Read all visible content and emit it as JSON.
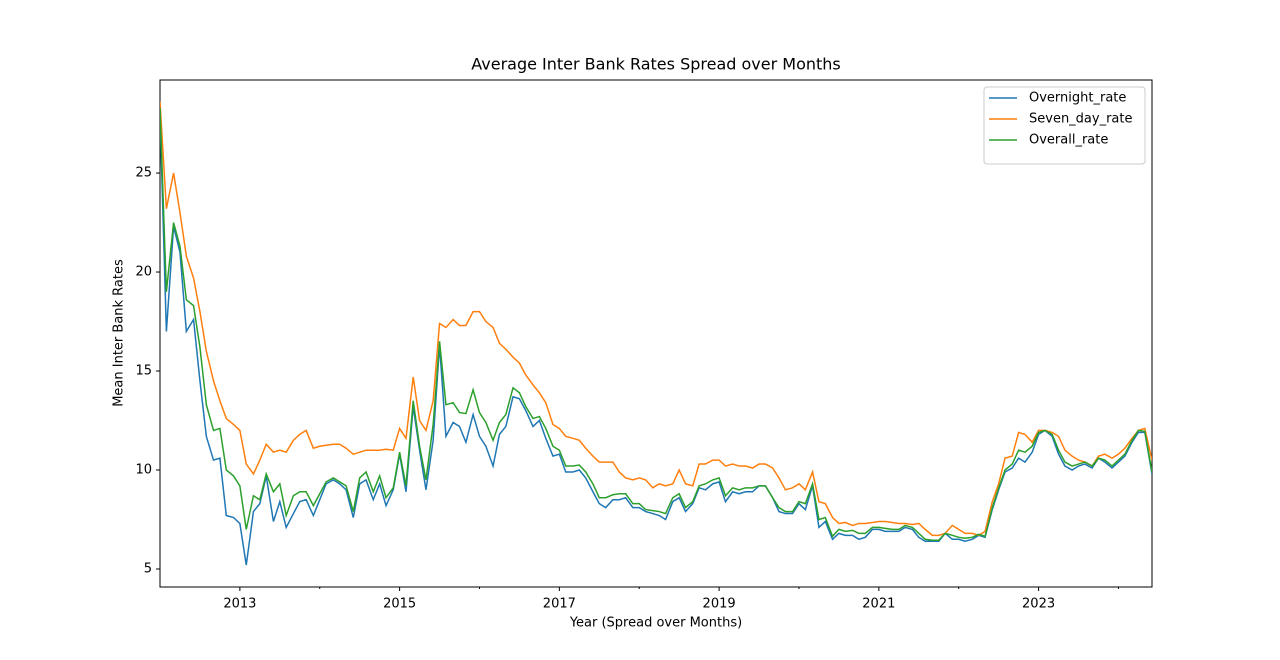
{
  "chart_data": {
    "type": "line",
    "title": "Average Inter Bank Rates Spread over Months",
    "x_label": "Year (Spread over Months)",
    "y_label": "Mean Inter Bank Rates",
    "x": [
      2012,
      2012.08,
      2012.17,
      2012.25,
      2012.33,
      2012.42,
      2012.5,
      2012.58,
      2012.67,
      2012.75,
      2012.83,
      2012.92,
      2013,
      2013.08,
      2013.17,
      2013.25,
      2013.33,
      2013.42,
      2013.5,
      2013.58,
      2013.67,
      2013.75,
      2013.83,
      2013.92,
      2014,
      2014.08,
      2014.17,
      2014.25,
      2014.33,
      2014.42,
      2014.5,
      2014.58,
      2014.67,
      2014.75,
      2014.83,
      2014.92,
      2015,
      2015.08,
      2015.17,
      2015.25,
      2015.33,
      2015.42,
      2015.5,
      2015.58,
      2015.67,
      2015.75,
      2015.83,
      2015.92,
      2016,
      2016.08,
      2016.17,
      2016.25,
      2016.33,
      2016.42,
      2016.5,
      2016.58,
      2016.67,
      2016.75,
      2016.83,
      2016.92,
      2017,
      2017.08,
      2017.17,
      2017.25,
      2017.33,
      2017.42,
      2017.5,
      2017.58,
      2017.67,
      2017.75,
      2017.83,
      2017.92,
      2018,
      2018.08,
      2018.17,
      2018.25,
      2018.33,
      2018.42,
      2018.5,
      2018.58,
      2018.67,
      2018.75,
      2018.83,
      2018.92,
      2019,
      2019.08,
      2019.17,
      2019.25,
      2019.33,
      2019.42,
      2019.5,
      2019.58,
      2019.67,
      2019.75,
      2019.83,
      2019.92,
      2020,
      2020.08,
      2020.17,
      2020.25,
      2020.33,
      2020.42,
      2020.5,
      2020.58,
      2020.67,
      2020.75,
      2020.83,
      2020.92,
      2021,
      2021.08,
      2021.17,
      2021.25,
      2021.33,
      2021.42,
      2021.5,
      2021.58,
      2021.67,
      2021.75,
      2021.83,
      2021.92,
      2022,
      2022.08,
      2022.17,
      2022.25,
      2022.33,
      2022.42,
      2022.5,
      2022.58,
      2022.67,
      2022.75,
      2022.83,
      2022.92,
      2023,
      2023.08,
      2023.17,
      2023.25,
      2023.33,
      2023.42,
      2023.5,
      2023.58,
      2023.67,
      2023.75,
      2023.83,
      2023.92,
      2024,
      2024.08,
      2024.17,
      2024.25,
      2024.33,
      2024.42
    ],
    "series": [
      {
        "name": "Overnight_rate",
        "color": "#1f77b4",
        "values": [
          28.0,
          17.0,
          22.3,
          21.0,
          17.0,
          17.6,
          14.5,
          11.7,
          10.5,
          10.6,
          7.7,
          7.6,
          7.3,
          5.2,
          7.9,
          8.3,
          9.7,
          7.4,
          8.4,
          7.1,
          7.8,
          8.4,
          8.5,
          7.7,
          8.5,
          9.3,
          9.5,
          9.3,
          9.0,
          7.6,
          9.3,
          9.5,
          8.5,
          9.3,
          8.2,
          9.0,
          10.8,
          8.9,
          13.2,
          11.0,
          9.0,
          11.5,
          16.3,
          11.7,
          12.4,
          12.2,
          11.4,
          12.8,
          11.7,
          11.2,
          10.2,
          11.8,
          12.2,
          13.7,
          13.6,
          13.0,
          12.2,
          12.5,
          11.6,
          10.7,
          10.8,
          9.9,
          9.9,
          10.0,
          9.6,
          8.9,
          8.3,
          8.1,
          8.5,
          8.5,
          8.6,
          8.1,
          8.1,
          7.9,
          7.8,
          7.7,
          7.5,
          8.4,
          8.6,
          7.9,
          8.3,
          9.1,
          9.0,
          9.3,
          9.4,
          8.4,
          8.9,
          8.8,
          8.9,
          8.9,
          9.2,
          9.2,
          8.6,
          7.9,
          7.8,
          7.8,
          8.3,
          8.0,
          9.2,
          7.1,
          7.4,
          6.5,
          6.8,
          6.7,
          6.7,
          6.5,
          6.6,
          7.0,
          7.0,
          6.9,
          6.9,
          6.9,
          7.1,
          7.0,
          6.6,
          6.4,
          6.4,
          6.4,
          6.8,
          6.5,
          6.5,
          6.4,
          6.5,
          6.7,
          6.6,
          8.0,
          9.0,
          9.9,
          10.1,
          10.6,
          10.4,
          10.9,
          11.8,
          12.0,
          11.7,
          10.8,
          10.2,
          10.0,
          10.2,
          10.3,
          10.1,
          10.6,
          10.4,
          10.1,
          10.4,
          10.7,
          11.4,
          11.9,
          11.9,
          9.8
        ]
      },
      {
        "name": "Seven_day_rate",
        "color": "#ff7f0e",
        "values": [
          28.6,
          23.2,
          25.0,
          23.0,
          20.8,
          19.7,
          18.0,
          16.0,
          14.5,
          13.5,
          12.6,
          12.3,
          12.0,
          10.3,
          9.8,
          10.5,
          11.3,
          10.9,
          11.0,
          10.9,
          11.5,
          11.8,
          12.0,
          11.1,
          11.2,
          11.25,
          11.3,
          11.3,
          11.1,
          10.8,
          10.9,
          11.0,
          11.0,
          11.0,
          11.05,
          11.0,
          12.1,
          11.6,
          14.7,
          12.5,
          12.0,
          13.5,
          17.4,
          17.2,
          17.6,
          17.3,
          17.3,
          18.0,
          18.0,
          17.5,
          17.2,
          16.4,
          16.1,
          15.7,
          15.4,
          14.8,
          14.3,
          13.9,
          13.4,
          12.3,
          12.1,
          11.7,
          11.6,
          11.5,
          11.1,
          10.7,
          10.4,
          10.4,
          10.4,
          9.9,
          9.6,
          9.5,
          9.6,
          9.5,
          9.1,
          9.3,
          9.2,
          9.3,
          10.0,
          9.3,
          9.2,
          10.3,
          10.3,
          10.5,
          10.5,
          10.2,
          10.3,
          10.2,
          10.2,
          10.1,
          10.3,
          10.3,
          10.1,
          9.6,
          9.0,
          9.1,
          9.3,
          9.0,
          9.9,
          8.4,
          8.3,
          7.6,
          7.3,
          7.35,
          7.2,
          7.3,
          7.3,
          7.35,
          7.4,
          7.4,
          7.35,
          7.3,
          7.3,
          7.25,
          7.3,
          7.0,
          6.7,
          6.7,
          6.8,
          7.2,
          7.0,
          6.8,
          6.8,
          6.7,
          6.9,
          8.4,
          9.3,
          10.6,
          10.7,
          11.9,
          11.8,
          11.4,
          12.0,
          12.0,
          11.9,
          11.7,
          11.0,
          10.7,
          10.5,
          10.4,
          10.2,
          10.7,
          10.8,
          10.6,
          10.8,
          11.1,
          11.6,
          12.0,
          12.1,
          10.5
        ]
      },
      {
        "name": "Overall_rate",
        "color": "#2ca02c",
        "values": [
          28.3,
          19.0,
          22.5,
          21.3,
          18.6,
          18.3,
          16.2,
          13.3,
          12.0,
          12.1,
          10.0,
          9.7,
          9.2,
          7.0,
          8.7,
          8.5,
          9.8,
          8.9,
          9.3,
          7.7,
          8.7,
          8.9,
          8.9,
          8.2,
          8.8,
          9.4,
          9.6,
          9.4,
          9.2,
          7.9,
          9.6,
          9.9,
          8.9,
          9.7,
          8.6,
          9.1,
          10.9,
          9.2,
          13.5,
          11.2,
          9.5,
          12.3,
          16.5,
          13.3,
          13.4,
          12.9,
          12.85,
          14.05,
          12.9,
          12.4,
          11.5,
          12.4,
          12.8,
          14.15,
          13.9,
          13.2,
          12.6,
          12.7,
          12.1,
          11.2,
          11.0,
          10.2,
          10.2,
          10.25,
          9.9,
          9.3,
          8.6,
          8.6,
          8.75,
          8.8,
          8.8,
          8.3,
          8.3,
          8.0,
          7.95,
          7.9,
          7.8,
          8.6,
          8.8,
          8.1,
          8.4,
          9.2,
          9.3,
          9.5,
          9.6,
          8.7,
          9.1,
          9.0,
          9.1,
          9.1,
          9.2,
          9.2,
          8.6,
          8.1,
          7.9,
          7.9,
          8.4,
          8.3,
          9.3,
          7.5,
          7.6,
          6.65,
          7.0,
          6.9,
          6.95,
          6.8,
          6.8,
          7.1,
          7.1,
          7.05,
          7.0,
          7.0,
          7.2,
          7.1,
          6.8,
          6.5,
          6.45,
          6.45,
          6.8,
          6.7,
          6.6,
          6.55,
          6.6,
          6.75,
          6.65,
          8.1,
          9.1,
          10.0,
          10.3,
          11.0,
          10.9,
          11.2,
          11.9,
          12.0,
          11.8,
          11.0,
          10.4,
          10.2,
          10.3,
          10.4,
          10.2,
          10.6,
          10.5,
          10.2,
          10.5,
          10.8,
          11.5,
          12.0,
          11.95,
          9.9
        ]
      }
    ],
    "xlim": [
      2012,
      2024.42
    ],
    "xticks": [
      2013,
      2015,
      2017,
      2019,
      2021,
      2023
    ],
    "xminor_ticks": [
      2014,
      2016,
      2018,
      2020,
      2022,
      2024
    ],
    "ylim": [
      4.09,
      29.7
    ],
    "yticks": [
      5,
      10,
      15,
      20,
      25
    ],
    "grid": false,
    "legend": "upper right"
  }
}
